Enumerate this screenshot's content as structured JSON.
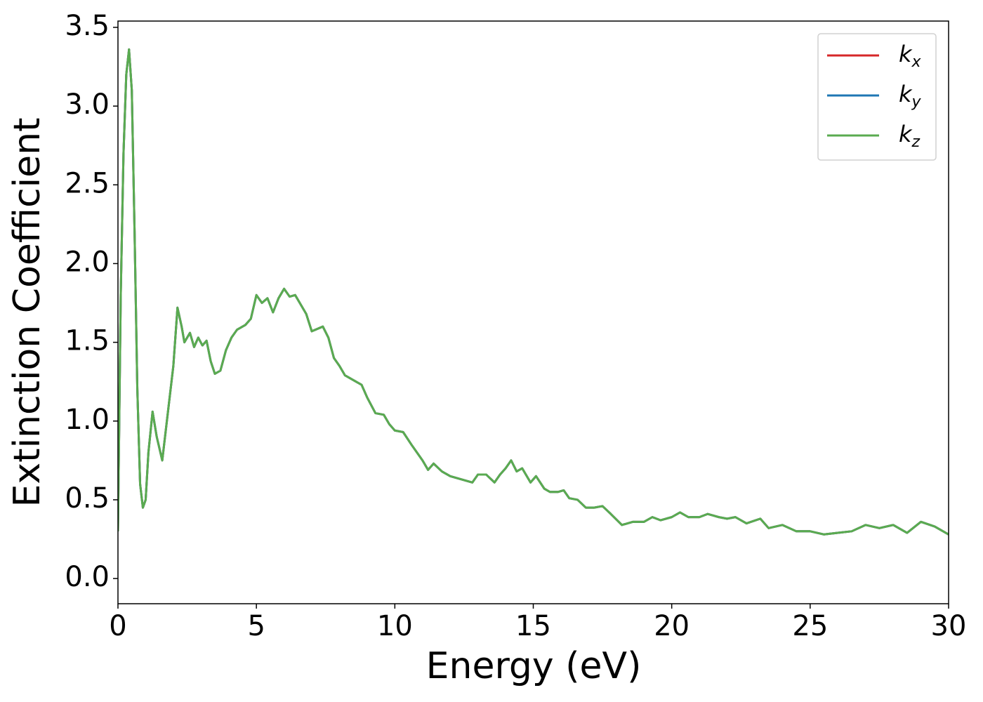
{
  "chart_data": {
    "type": "line",
    "xlabel": "Energy (eV)",
    "ylabel": "Extinction Coefficient",
    "x": [
      0.0,
      0.1,
      0.2,
      0.3,
      0.4,
      0.5,
      0.6,
      0.7,
      0.8,
      0.9,
      1.0,
      1.1,
      1.25,
      1.4,
      1.6,
      1.8,
      2.0,
      2.15,
      2.3,
      2.4,
      2.6,
      2.75,
      2.9,
      3.05,
      3.2,
      3.35,
      3.5,
      3.7,
      3.9,
      4.1,
      4.3,
      4.6,
      4.8,
      5.0,
      5.2,
      5.4,
      5.6,
      5.8,
      6.0,
      6.2,
      6.4,
      6.6,
      6.8,
      7.0,
      7.4,
      7.6,
      7.8,
      8.0,
      8.2,
      8.5,
      8.8,
      9.0,
      9.3,
      9.6,
      9.8,
      10.0,
      10.3,
      10.6,
      11.0,
      11.2,
      11.4,
      11.7,
      12.0,
      12.4,
      12.8,
      13.0,
      13.3,
      13.6,
      13.8,
      14.0,
      14.2,
      14.4,
      14.6,
      14.9,
      15.1,
      15.4,
      15.6,
      15.9,
      16.1,
      16.3,
      16.6,
      16.9,
      17.2,
      17.5,
      17.8,
      18.2,
      18.6,
      19.0,
      19.3,
      19.6,
      20.0,
      20.3,
      20.6,
      21.0,
      21.3,
      21.7,
      22.0,
      22.3,
      22.7,
      23.2,
      23.5,
      24.0,
      24.5,
      25.0,
      25.5,
      26.0,
      26.5,
      27.0,
      27.5,
      28.0,
      28.5,
      29.0,
      29.5,
      30.0
    ],
    "series": [
      {
        "name": "kx",
        "color": "#d62728",
        "values": [
          0.3,
          1.8,
          2.7,
          3.2,
          3.36,
          3.1,
          2.2,
          1.2,
          0.6,
          0.45,
          0.5,
          0.8,
          1.06,
          0.9,
          0.75,
          1.05,
          1.35,
          1.72,
          1.6,
          1.5,
          1.56,
          1.47,
          1.53,
          1.48,
          1.51,
          1.38,
          1.3,
          1.32,
          1.45,
          1.53,
          1.58,
          1.61,
          1.65,
          1.8,
          1.75,
          1.78,
          1.69,
          1.78,
          1.84,
          1.79,
          1.8,
          1.74,
          1.68,
          1.57,
          1.6,
          1.53,
          1.4,
          1.35,
          1.29,
          1.26,
          1.23,
          1.15,
          1.05,
          1.04,
          0.98,
          0.94,
          0.93,
          0.85,
          0.75,
          0.69,
          0.73,
          0.68,
          0.65,
          0.63,
          0.61,
          0.66,
          0.66,
          0.61,
          0.66,
          0.7,
          0.75,
          0.68,
          0.7,
          0.61,
          0.65,
          0.57,
          0.55,
          0.55,
          0.56,
          0.51,
          0.5,
          0.45,
          0.45,
          0.46,
          0.41,
          0.34,
          0.36,
          0.36,
          0.39,
          0.37,
          0.39,
          0.42,
          0.39,
          0.39,
          0.41,
          0.39,
          0.38,
          0.39,
          0.35,
          0.38,
          0.32,
          0.34,
          0.3,
          0.3,
          0.28,
          0.29,
          0.3,
          0.34,
          0.32,
          0.34,
          0.29,
          0.36,
          0.33,
          0.28
        ]
      },
      {
        "name": "ky",
        "color": "#1f77b4",
        "values": [
          0.3,
          1.8,
          2.7,
          3.2,
          3.36,
          3.1,
          2.2,
          1.2,
          0.6,
          0.45,
          0.5,
          0.8,
          1.06,
          0.9,
          0.75,
          1.05,
          1.35,
          1.72,
          1.6,
          1.5,
          1.56,
          1.47,
          1.53,
          1.48,
          1.51,
          1.38,
          1.3,
          1.32,
          1.45,
          1.53,
          1.58,
          1.61,
          1.65,
          1.8,
          1.75,
          1.78,
          1.69,
          1.78,
          1.84,
          1.79,
          1.8,
          1.74,
          1.68,
          1.57,
          1.6,
          1.53,
          1.4,
          1.35,
          1.29,
          1.26,
          1.23,
          1.15,
          1.05,
          1.04,
          0.98,
          0.94,
          0.93,
          0.85,
          0.75,
          0.69,
          0.73,
          0.68,
          0.65,
          0.63,
          0.61,
          0.66,
          0.66,
          0.61,
          0.66,
          0.7,
          0.75,
          0.68,
          0.7,
          0.61,
          0.65,
          0.57,
          0.55,
          0.55,
          0.56,
          0.51,
          0.5,
          0.45,
          0.45,
          0.46,
          0.41,
          0.34,
          0.36,
          0.36,
          0.39,
          0.37,
          0.39,
          0.42,
          0.39,
          0.39,
          0.41,
          0.39,
          0.38,
          0.39,
          0.35,
          0.38,
          0.32,
          0.34,
          0.3,
          0.3,
          0.28,
          0.29,
          0.3,
          0.34,
          0.32,
          0.34,
          0.29,
          0.36,
          0.33,
          0.28
        ]
      },
      {
        "name": "kz",
        "color": "#5aab50",
        "values": [
          0.3,
          1.8,
          2.7,
          3.2,
          3.36,
          3.1,
          2.2,
          1.2,
          0.6,
          0.45,
          0.5,
          0.8,
          1.06,
          0.9,
          0.75,
          1.05,
          1.35,
          1.72,
          1.6,
          1.5,
          1.56,
          1.47,
          1.53,
          1.48,
          1.51,
          1.38,
          1.3,
          1.32,
          1.45,
          1.53,
          1.58,
          1.61,
          1.65,
          1.8,
          1.75,
          1.78,
          1.69,
          1.78,
          1.84,
          1.79,
          1.8,
          1.74,
          1.68,
          1.57,
          1.6,
          1.53,
          1.4,
          1.35,
          1.29,
          1.26,
          1.23,
          1.15,
          1.05,
          1.04,
          0.98,
          0.94,
          0.93,
          0.85,
          0.75,
          0.69,
          0.73,
          0.68,
          0.65,
          0.63,
          0.61,
          0.66,
          0.66,
          0.61,
          0.66,
          0.7,
          0.75,
          0.68,
          0.7,
          0.61,
          0.65,
          0.57,
          0.55,
          0.55,
          0.56,
          0.51,
          0.5,
          0.45,
          0.45,
          0.46,
          0.41,
          0.34,
          0.36,
          0.36,
          0.39,
          0.37,
          0.39,
          0.42,
          0.39,
          0.39,
          0.41,
          0.39,
          0.38,
          0.39,
          0.35,
          0.38,
          0.32,
          0.34,
          0.3,
          0.3,
          0.28,
          0.29,
          0.3,
          0.34,
          0.32,
          0.34,
          0.29,
          0.36,
          0.33,
          0.28
        ]
      }
    ],
    "xlim": [
      0,
      30
    ],
    "xticks": [
      0,
      5,
      10,
      15,
      20,
      25,
      30
    ],
    "ylim": [
      -0.16,
      3.54
    ],
    "yticks": [
      {
        "value": 0,
        "label": "0.0"
      },
      0.5,
      {
        "value": 1,
        "label": "1.0"
      },
      1.5,
      {
        "value": 2,
        "label": "2.0"
      },
      2.5,
      {
        "value": 3,
        "label": "3.0"
      },
      3.5
    ],
    "grid": false,
    "legend": "upper right"
  }
}
